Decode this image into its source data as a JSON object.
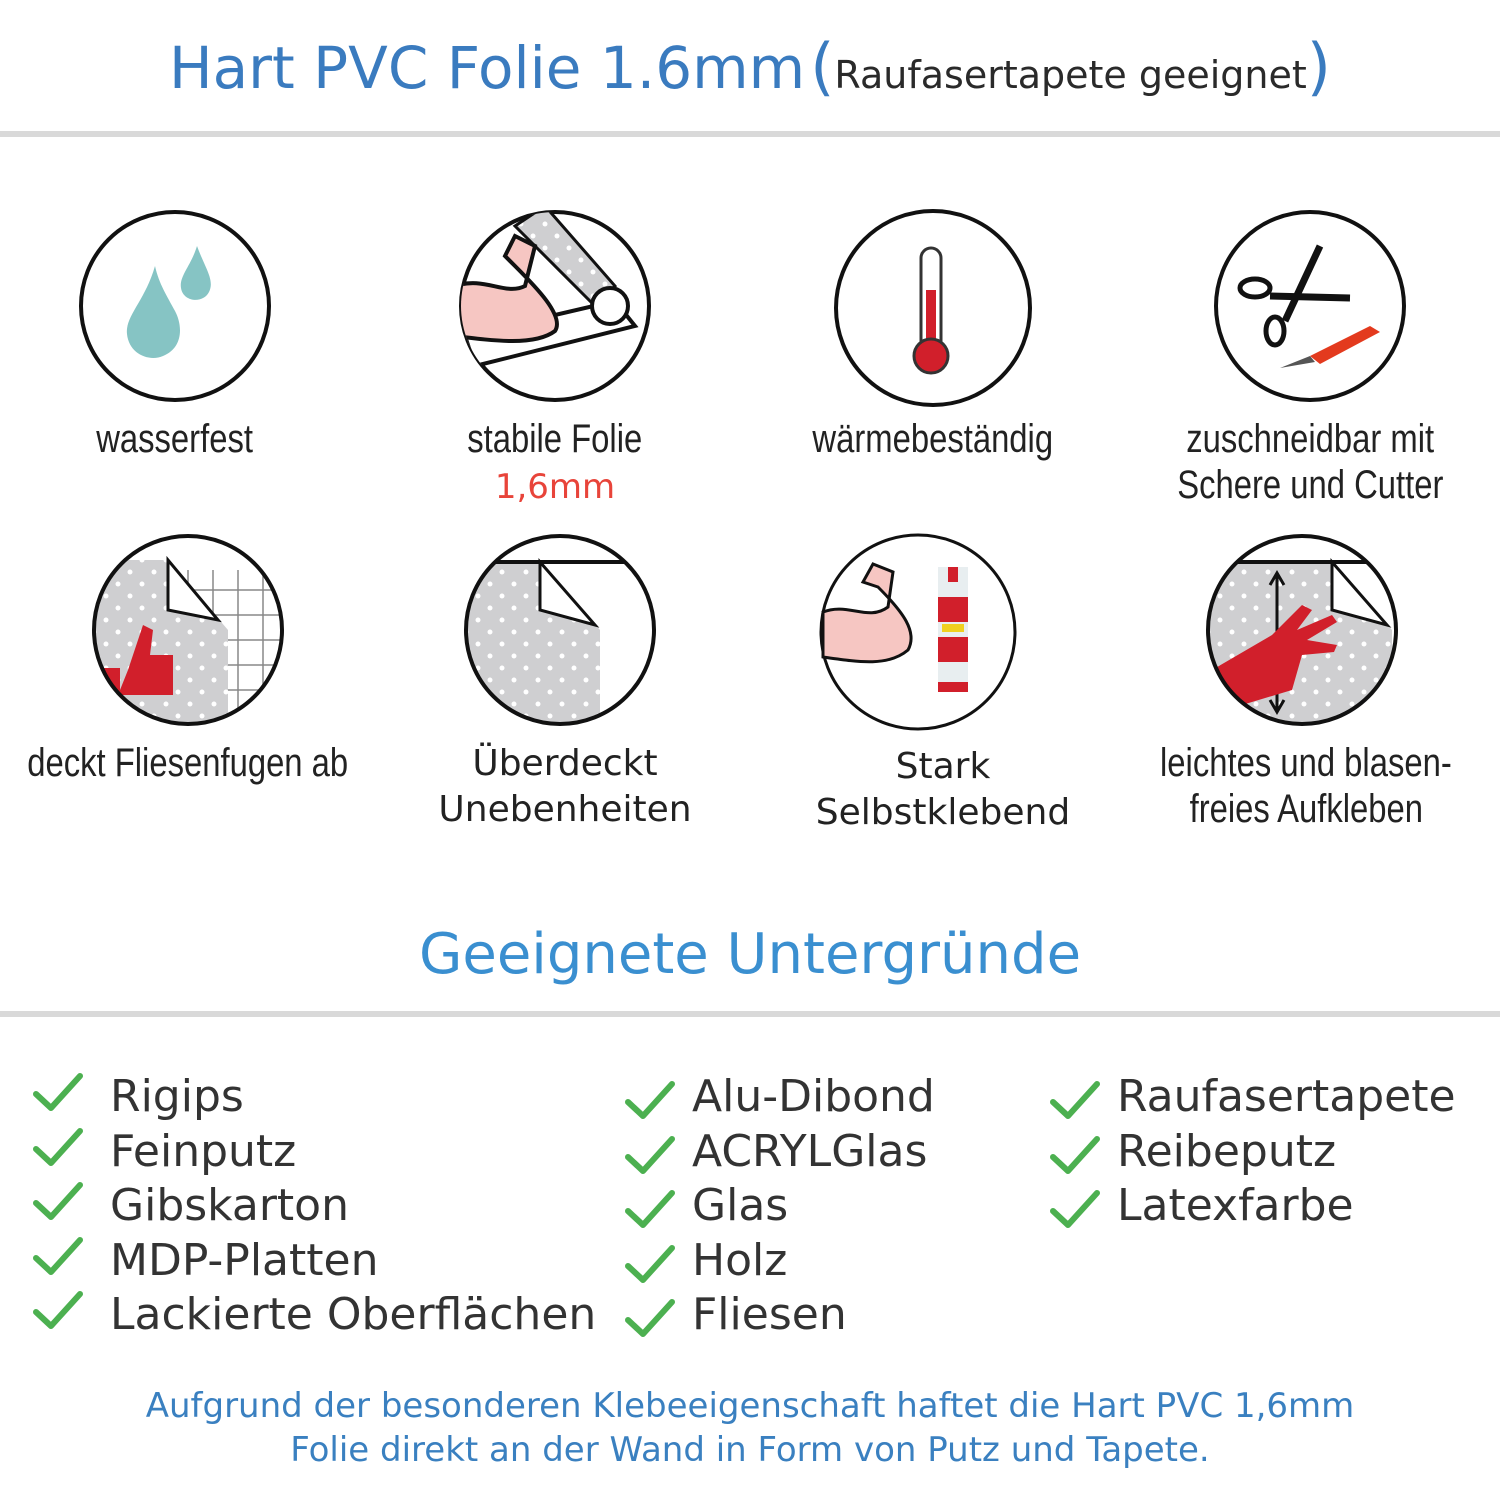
{
  "header": {
    "title": "Hart PVC Folie 1.6mm",
    "paren_open": "(",
    "subtitle": "Raufasertapete geeignet",
    "paren_close": ")"
  },
  "features": [
    {
      "icon": "water-drops-icon",
      "line1": "wasserfest"
    },
    {
      "icon": "strong-arm-foil-icon",
      "line1": "stabile Folie",
      "line2": "1,6mm"
    },
    {
      "icon": "thermometer-icon",
      "line1": "wärmebeständig"
    },
    {
      "icon": "scissors-cutter-icon",
      "line1": "zuschneidbar mit",
      "line2": "Schere und Cutter"
    },
    {
      "icon": "tile-cover-thumbs-up-icon",
      "line1": "deckt Fliesenfugen ab"
    },
    {
      "icon": "foil-corner-icon",
      "line1": "Überdeckt",
      "line2": "Unebenheiten"
    },
    {
      "icon": "strong-arm-glue-icon",
      "line1": "Stark",
      "line2": "Selbstklebend"
    },
    {
      "icon": "hand-smoothing-icon",
      "line1": "leichtes und blasen-",
      "line2": "freies Aufkleben"
    }
  ],
  "surfaces": {
    "title": "Geeignete Untergründe",
    "columns": [
      [
        "Rigips",
        "Feinputz",
        "Gibskarton",
        "MDP-Platten",
        "Lackierte Oberflächen"
      ],
      [
        "Alu-Dibond",
        "ACRYLGlas",
        "Glas",
        "Holz",
        "Fliesen"
      ],
      [
        "Raufasertapete",
        "Reibeputz",
        "Latexfarbe"
      ]
    ]
  },
  "footer": {
    "line1": "Aufgrund der besonderen Klebeeigenschaft haftet die Hart PVC 1,6mm",
    "line2": "Folie direkt an der Wand in Form von Putz und Tapete."
  },
  "colors": {
    "title_blue": "#3a7bbf",
    "accent_red": "#e8443a",
    "check_green": "#4cb050",
    "divider": "#d9d9d9"
  }
}
